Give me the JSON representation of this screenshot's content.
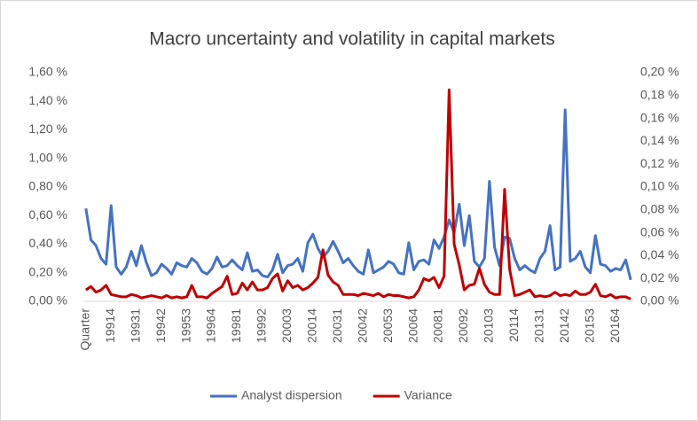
{
  "chart_data": {
    "type": "line",
    "title": "Macro uncertainty and volatility in capital markets",
    "categories": [
      "Quarter",
      null,
      null,
      null,
      null,
      "19914",
      null,
      null,
      null,
      null,
      "19931",
      null,
      null,
      null,
      null,
      "19942",
      null,
      null,
      null,
      null,
      "19953",
      null,
      null,
      null,
      null,
      "19964",
      null,
      null,
      null,
      null,
      "19981",
      null,
      null,
      null,
      null,
      "19992",
      null,
      null,
      null,
      null,
      "20003",
      null,
      null,
      null,
      null,
      "20014",
      null,
      null,
      null,
      null,
      "20031",
      null,
      null,
      null,
      null,
      "20042",
      null,
      null,
      null,
      null,
      "20053",
      null,
      null,
      null,
      null,
      "20064",
      null,
      null,
      null,
      null,
      "20081",
      null,
      null,
      null,
      null,
      "20092",
      null,
      null,
      null,
      null,
      "20103",
      null,
      null,
      null,
      null,
      "20114",
      null,
      null,
      null,
      null,
      "20131",
      null,
      null,
      null,
      null,
      "20142",
      null,
      null,
      null,
      null,
      "20153",
      null,
      null,
      null,
      null,
      "20164",
      null,
      null,
      null
    ],
    "series": [
      {
        "name": "Analyst dispersion",
        "color": "#4472c4",
        "values": [
          0.65,
          0.43,
          0.39,
          0.3,
          0.26,
          0.67,
          0.24,
          0.19,
          0.24,
          0.35,
          0.25,
          0.39,
          0.27,
          0.18,
          0.2,
          0.26,
          0.23,
          0.19,
          0.27,
          0.25,
          0.24,
          0.3,
          0.27,
          0.21,
          0.19,
          0.23,
          0.31,
          0.24,
          0.25,
          0.29,
          0.25,
          0.22,
          0.34,
          0.21,
          0.22,
          0.18,
          0.17,
          0.22,
          0.33,
          0.2,
          0.25,
          0.26,
          0.3,
          0.21,
          0.41,
          0.47,
          0.37,
          0.31,
          0.35,
          0.42,
          0.35,
          0.27,
          0.3,
          0.25,
          0.21,
          0.19,
          0.36,
          0.2,
          0.22,
          0.24,
          0.28,
          0.26,
          0.2,
          0.19,
          0.41,
          0.22,
          0.28,
          0.29,
          0.26,
          0.43,
          0.37,
          0.45,
          0.57,
          0.48,
          0.68,
          0.39,
          0.6,
          0.28,
          0.24,
          0.3,
          0.84,
          0.38,
          0.25,
          0.45,
          0.44,
          0.3,
          0.22,
          0.25,
          0.22,
          0.2,
          0.3,
          0.35,
          0.53,
          0.22,
          0.24,
          1.34,
          0.28,
          0.3,
          0.35,
          0.24,
          0.2,
          0.46,
          0.26,
          0.25,
          0.21,
          0.23,
          0.22,
          0.29,
          0.15
        ]
      },
      {
        "name": "Variance",
        "color": "#c00000",
        "axis": "y2",
        "values": [
          0.01,
          0.013,
          0.008,
          0.01,
          0.014,
          0.006,
          0.005,
          0.004,
          0.004,
          0.006,
          0.005,
          0.003,
          0.004,
          0.005,
          0.004,
          0.003,
          0.005,
          0.003,
          0.004,
          0.003,
          0.004,
          0.014,
          0.004,
          0.004,
          0.003,
          0.007,
          0.01,
          0.013,
          0.022,
          0.006,
          0.007,
          0.016,
          0.01,
          0.017,
          0.01,
          0.01,
          0.012,
          0.02,
          0.024,
          0.009,
          0.018,
          0.012,
          0.014,
          0.01,
          0.012,
          0.016,
          0.021,
          0.045,
          0.023,
          0.017,
          0.014,
          0.006,
          0.006,
          0.006,
          0.005,
          0.007,
          0.006,
          0.005,
          0.007,
          0.004,
          0.006,
          0.005,
          0.005,
          0.004,
          0.003,
          0.004,
          0.01,
          0.02,
          0.018,
          0.021,
          0.012,
          0.022,
          0.185,
          0.05,
          0.032,
          0.01,
          0.014,
          0.015,
          0.029,
          0.015,
          0.008,
          0.006,
          0.006,
          0.098,
          0.028,
          0.005,
          0.006,
          0.008,
          0.01,
          0.004,
          0.005,
          0.004,
          0.005,
          0.008,
          0.005,
          0.006,
          0.005,
          0.009,
          0.006,
          0.006,
          0.008,
          0.015,
          0.005,
          0.004,
          0.006,
          0.003,
          0.004,
          0.004,
          0.002
        ]
      }
    ],
    "ylim": [
      0,
      1.6
    ],
    "yticks": [
      {
        "value": 0,
        "label": "0,00 %"
      },
      {
        "value": 0.2,
        "label": "0,20 %"
      },
      {
        "value": 0.4,
        "label": "0,40 %"
      },
      {
        "value": 0.6,
        "label": "0,60 %"
      },
      {
        "value": 0.8,
        "label": "0,80 %"
      },
      {
        "value": 1.0,
        "label": "1,00 %"
      },
      {
        "value": 1.2,
        "label": "1,20 %"
      },
      {
        "value": 1.4,
        "label": "1,40 %"
      },
      {
        "value": 1.6,
        "label": "1,60 %"
      }
    ],
    "y2lim": [
      0,
      0.2
    ],
    "y2ticks": [
      {
        "value": 0,
        "label": "0,00 %"
      },
      {
        "value": 0.02,
        "label": "0,02 %"
      },
      {
        "value": 0.04,
        "label": "0,04 %"
      },
      {
        "value": 0.06,
        "label": "0,06 %"
      },
      {
        "value": 0.08,
        "label": "0,08 %"
      },
      {
        "value": 0.1,
        "label": "0,10 %"
      },
      {
        "value": 0.12,
        "label": "0,12 %"
      },
      {
        "value": 0.14,
        "label": "0,14 %"
      },
      {
        "value": 0.16,
        "label": "0,16 %"
      },
      {
        "value": 0.18,
        "label": "0,18 %"
      },
      {
        "value": 0.2,
        "label": "0,20 %"
      }
    ],
    "grid": false,
    "legend": "bottom"
  }
}
